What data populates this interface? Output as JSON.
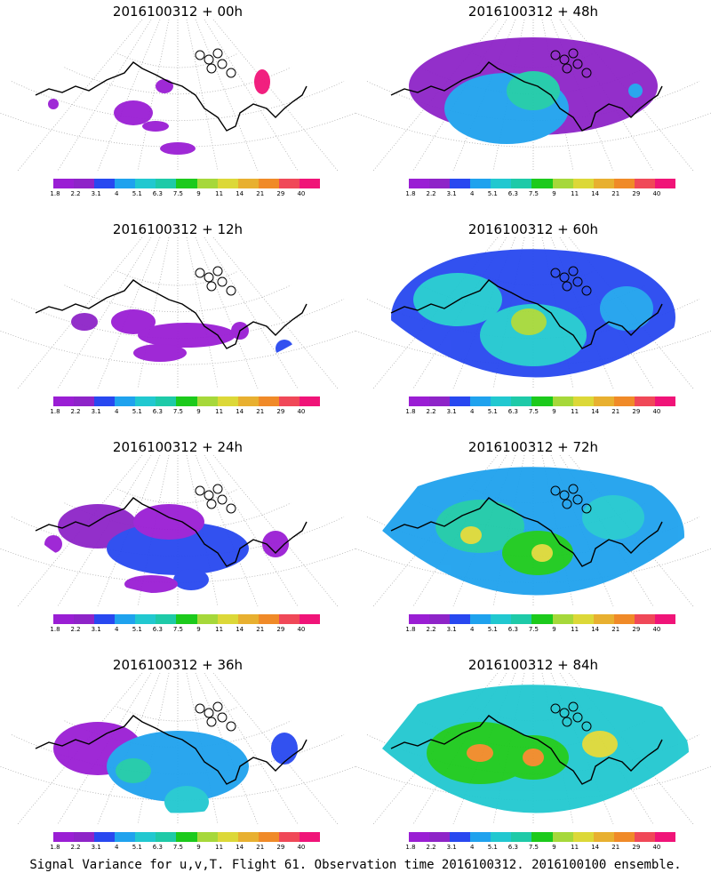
{
  "footer": "Signal Variance for u,v,T. Flight 61. Observation time 2016100312. 2016100100 ensemble.",
  "colorbar": {
    "colors": [
      "#9a1ed4",
      "#8e24c8",
      "#2848f0",
      "#1fa2ee",
      "#21c8d0",
      "#1ecaa8",
      "#1cca1c",
      "#a6d83a",
      "#dcd838",
      "#e8b030",
      "#f08a28",
      "#f04858",
      "#f01478"
    ],
    "labels": [
      "1.8",
      "2.2",
      "3.1",
      "4",
      "5.1",
      "6.3",
      "7.5",
      "9",
      "11",
      "14",
      "21",
      "29",
      "40"
    ]
  },
  "panels": [
    {
      "title": "2016100312 + 00h",
      "level": 0
    },
    {
      "title": "2016100312 + 48h",
      "level": 4
    },
    {
      "title": "2016100312 + 12h",
      "level": 1
    },
    {
      "title": "2016100312 + 60h",
      "level": 5
    },
    {
      "title": "2016100312 + 24h",
      "level": 2
    },
    {
      "title": "2016100312 + 72h",
      "level": 6
    },
    {
      "title": "2016100312 + 36h",
      "level": 3
    },
    {
      "title": "2016100312 + 84h",
      "level": 7
    }
  ]
}
